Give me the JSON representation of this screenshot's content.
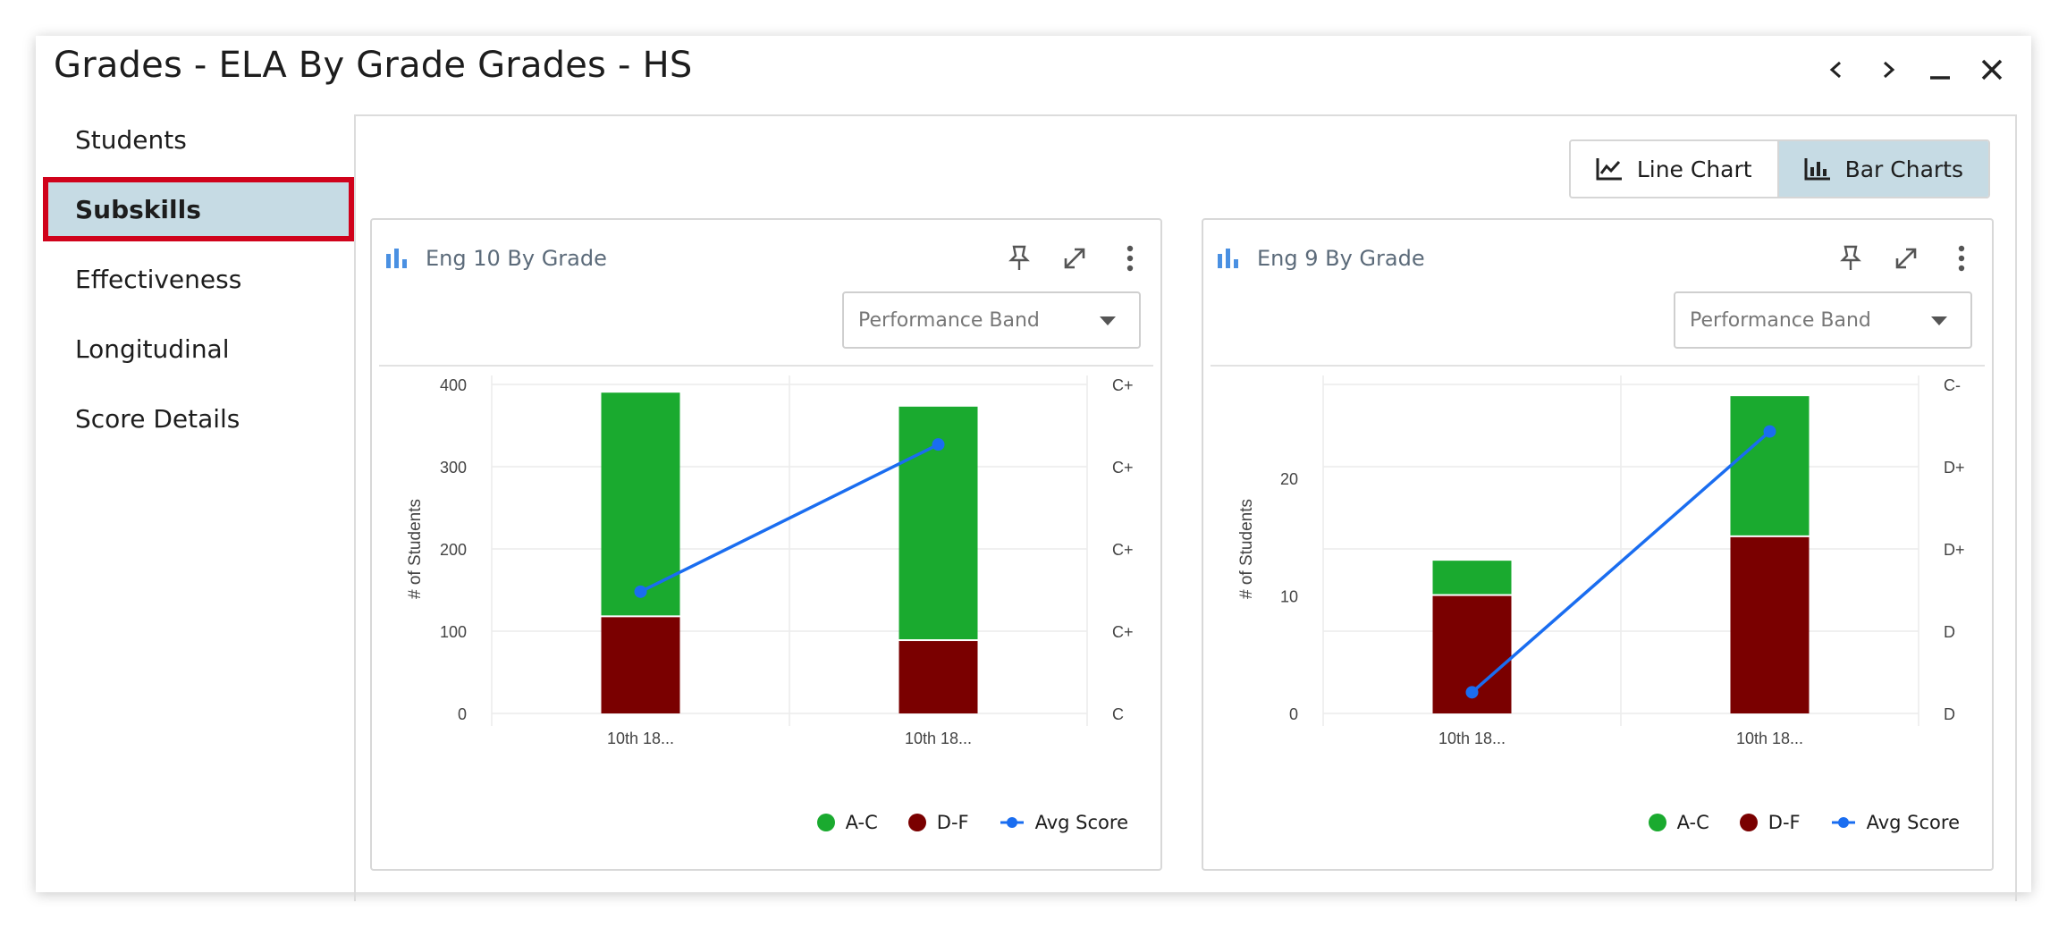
{
  "window": {
    "title": "Grades - ELA By Grade Grades - HS"
  },
  "sidebar": {
    "items": [
      {
        "label": "Students",
        "active": false
      },
      {
        "label": "Subskills",
        "active": true
      },
      {
        "label": "Effectiveness",
        "active": false
      },
      {
        "label": "Longitudinal",
        "active": false
      },
      {
        "label": "Score Details",
        "active": false
      }
    ]
  },
  "toggle": {
    "line_label": "Line Chart",
    "bar_label": "Bar Charts",
    "selected": "Bar Charts"
  },
  "colors": {
    "ac": "#1aaa2f",
    "df": "#7a0000",
    "avg": "#1a6df0",
    "accent": "#c6dbe4",
    "highlight": "#d0021b"
  },
  "cards": [
    {
      "title": "Eng 10 By Grade",
      "select_value": "Performance Band"
    },
    {
      "title": "Eng 9 By Grade",
      "select_value": "Performance Band"
    }
  ],
  "legend": {
    "ac": "A-C",
    "df": "D-F",
    "avg": "Avg Score"
  },
  "chart_data": [
    {
      "type": "bar",
      "title": "Eng 10 By Grade",
      "ylabel": "# of Students",
      "categories": [
        "10th 18...",
        "10th 18..."
      ],
      "ylim": [
        0,
        400
      ],
      "yticks": [
        0,
        100,
        200,
        300,
        400
      ],
      "y2_ticks": [
        "C",
        "C+",
        "C+",
        "C+",
        "C+"
      ],
      "series": [
        {
          "name": "D-F",
          "values": [
            117,
            88
          ]
        },
        {
          "name": "A-C",
          "values": [
            273,
            285
          ]
        },
        {
          "name": "Avg Score",
          "kind": "line",
          "values": [
            148,
            327
          ]
        }
      ]
    },
    {
      "type": "bar",
      "title": "Eng 9 By Grade",
      "ylabel": "# of Students",
      "categories": [
        "10th 18...",
        "10th 18..."
      ],
      "ylim": [
        0,
        28
      ],
      "yticks": [
        0,
        10,
        20
      ],
      "y2_ticks": [
        "D",
        "D",
        "D+",
        "D+",
        "C-"
      ],
      "series": [
        {
          "name": "D-F",
          "values": [
            10,
            15
          ]
        },
        {
          "name": "A-C",
          "values": [
            3,
            12
          ]
        },
        {
          "name": "Avg Score",
          "kind": "line",
          "values": [
            1.8,
            24
          ]
        }
      ]
    }
  ]
}
